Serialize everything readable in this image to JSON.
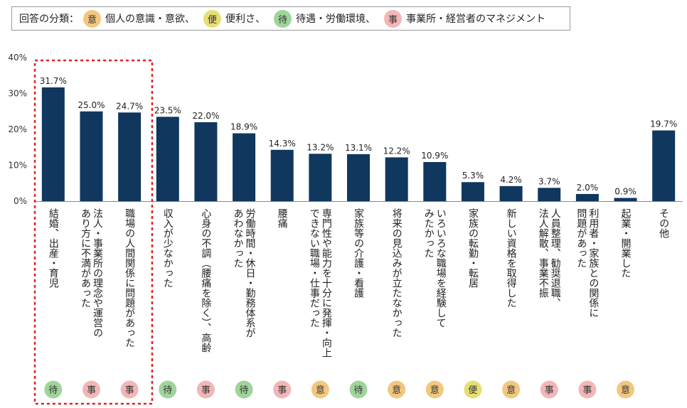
{
  "legend": {
    "title": "回答の分類：",
    "items": [
      {
        "key": "意",
        "label": "個人の意識・意欲、"
      },
      {
        "key": "便",
        "label": "便利さ、"
      },
      {
        "key": "待",
        "label": "待遇・労働環境、"
      },
      {
        "key": "事",
        "label": "事業所・経営者のマネジメント"
      }
    ]
  },
  "badge_colors": {
    "意": "#f2c77f",
    "便": "#e6de73",
    "待": "#9fd49b",
    "事": "#f2b6b6"
  },
  "colors": {
    "bar": "#10375e",
    "highlight_box": "#e02020",
    "axis": "#888888"
  },
  "chart_data": {
    "type": "bar",
    "ylim": [
      0,
      40
    ],
    "yticks": [
      "0%",
      "10%",
      "20%",
      "30%",
      "40%"
    ],
    "highlight_first_n": 3,
    "categories": [
      "結婚、出産・育児",
      "法人・事業所の理念や運営のあり方に不満があった",
      "職場の人間関係に問題があった",
      "収入が少なかった",
      "心身の不調（腰痛を除く）、高齢",
      "労働時間・休日・勤務体系があわなかった",
      "腰痛",
      "専門性や能力を十分に発揮・向上できない職場・仕事だった",
      "家族等の介護・看護",
      "将来の見込みが立たなかった",
      "いろいろな職場を経験してみたかった",
      "家族の転勤・転居",
      "新しい資格を取得した",
      "人員整理、勧奨退職、法人解散、事業不振",
      "利用者・家族との関係に問題があった",
      "起業・開業した",
      "その他"
    ],
    "category_lines": [
      [
        "結婚、出産・育児"
      ],
      [
        "法人・事業所の理念や運営の",
        "あり方に不満があった"
      ],
      [
        "職場の人間関係に問題があった"
      ],
      [
        "収入が少なかった"
      ],
      [
        "心身の不調（腰痛を除く）、高齢"
      ],
      [
        "労働時間・休日・勤務体系が",
        "あわなかった"
      ],
      [
        "腰痛"
      ],
      [
        "専門性や能力を十分に発揮・向上",
        "できない職場・仕事だった"
      ],
      [
        "家族等の介護・看護"
      ],
      [
        "将来の見込みが立たなかった"
      ],
      [
        "いろいろな職場を経験して",
        "みたかった"
      ],
      [
        "家族の転勤・転居"
      ],
      [
        "新しい資格を取得した"
      ],
      [
        "人員整理、勧奨退職、",
        "法人解散、事業不振"
      ],
      [
        "利用者・家族との関係に",
        "問題があった"
      ],
      [
        "起業・開業した"
      ],
      [
        "その他"
      ]
    ],
    "values": [
      31.7,
      25.0,
      24.7,
      23.5,
      22.0,
      18.9,
      14.3,
      13.2,
      13.1,
      12.2,
      10.9,
      5.3,
      4.2,
      3.7,
      2.0,
      0.9,
      19.7
    ],
    "value_labels": [
      "31.7%",
      "25.0%",
      "24.7%",
      "23.5%",
      "22.0%",
      "18.9%",
      "14.3%",
      "13.2%",
      "13.1%",
      "12.2%",
      "10.9%",
      "5.3%",
      "4.2%",
      "3.7%",
      "2.0%",
      "0.9%",
      "19.7%"
    ],
    "classes": [
      "待",
      "事",
      "事",
      "待",
      "事",
      "待",
      "事",
      "意",
      "待",
      "意",
      "意",
      "便",
      "意",
      "事",
      "事",
      "意",
      ""
    ]
  }
}
